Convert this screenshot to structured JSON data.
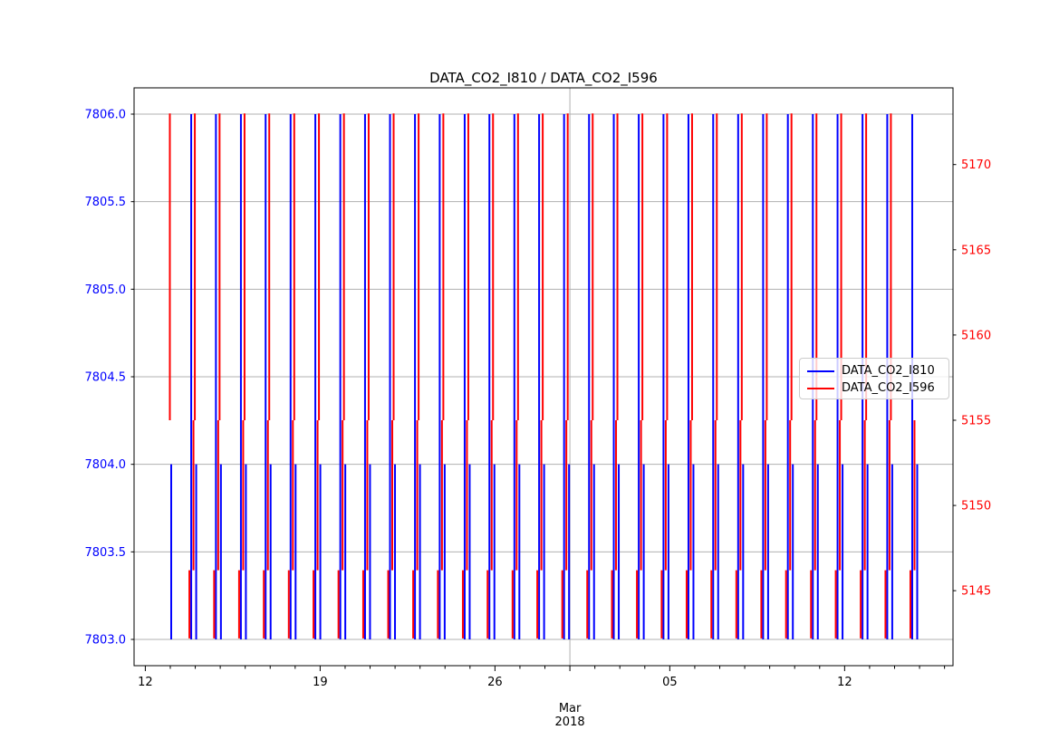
{
  "title": "DATA_CO2_I810 / DATA_CO2_I596",
  "colors": {
    "blue": "#0000ff",
    "red": "#ff0000",
    "grid": "#b0b0b0",
    "spine": "#000000",
    "text": "#000000"
  },
  "legend": {
    "entries": [
      {
        "label": "DATA_CO2_I810",
        "color": "#0000ff"
      },
      {
        "label": "DATA_CO2_I596",
        "color": "#ff0000"
      }
    ]
  },
  "chart_data": {
    "type": "line",
    "title": "DATA_CO2_I810 / DATA_CO2_I596",
    "grid": true,
    "legend_position": "center-right",
    "x_axis": {
      "unit": "days since 2018-02-12",
      "xlim_days": [
        -0.45,
        32.34
      ],
      "minor_tick_every_days": 1,
      "major_ticks": [
        {
          "day": 0,
          "label": "12"
        },
        {
          "day": 7,
          "label": "19"
        },
        {
          "day": 14,
          "label": "26"
        },
        {
          "day": 21,
          "label": "05"
        },
        {
          "day": 28,
          "label": "12"
        }
      ],
      "month_gridline_day": 17,
      "month_label_line1": "Mar",
      "month_label_line2": "2018"
    },
    "left_axis": {
      "series": "DATA_CO2_I810",
      "color": "#0000ff",
      "ylim": [
        7802.85,
        7806.15
      ],
      "ticks": [
        7806.0,
        7805.5,
        7805.0,
        7804.5,
        7804.0,
        7803.5,
        7803.0
      ],
      "tick_labels": [
        "7806.0",
        "7805.5",
        "7805.0",
        "7804.5",
        "7804.0",
        "7803.5",
        "7803.0"
      ]
    },
    "right_axis": {
      "series": "DATA_CO2_I596",
      "color": "#ff0000",
      "ylim": [
        5140.6,
        5174.5
      ],
      "ticks": [
        5170,
        5165,
        5160,
        5155,
        5150,
        5145
      ],
      "tick_labels": [
        "5170",
        "5165",
        "5160",
        "5155",
        "5150",
        "5145"
      ]
    },
    "levels": {
      "blue": {
        "peak": 7806.0,
        "high": 7804.0,
        "low": 7803.0
      },
      "red": {
        "peak": 5173.0,
        "shoulder": 5155.0,
        "mid": 5146.2,
        "low": 5142.2
      }
    },
    "segment_defs": {
      "blue_full": {
        "axis": "left",
        "from": 7806.0,
        "to": 7803.0,
        "color": "#0000ff"
      },
      "blue_short": {
        "axis": "left",
        "from": 7804.0,
        "to": 7803.0,
        "color": "#0000ff"
      },
      "red_upper": {
        "axis": "right",
        "from": 5173.0,
        "to": 5155.0,
        "color": "#ff0000"
      },
      "red_mid": {
        "axis": "right",
        "from": 5155.0,
        "to": 5146.2,
        "color": "#ff0000"
      },
      "red_stub": {
        "axis": "right",
        "from": 5146.2,
        "to": 5142.2,
        "color": "#ff0000"
      }
    },
    "groups": [
      {
        "day": 0.91,
        "segments": [
          "red_upper",
          "blue_short"
        ]
      },
      {
        "day": 1.91,
        "segments": [
          "blue_full",
          "blue_short",
          "red_upper",
          "red_mid",
          "red_stub"
        ]
      },
      {
        "day": 2.9,
        "segments": [
          "blue_full",
          "blue_short",
          "red_upper",
          "red_mid",
          "red_stub"
        ]
      },
      {
        "day": 3.9,
        "segments": [
          "blue_full",
          "blue_short",
          "red_upper",
          "red_mid",
          "red_stub"
        ]
      },
      {
        "day": 4.89,
        "segments": [
          "blue_full",
          "blue_short",
          "red_upper",
          "red_mid",
          "red_stub"
        ]
      },
      {
        "day": 5.89,
        "segments": [
          "blue_full",
          "blue_short",
          "red_upper",
          "red_mid",
          "red_stub"
        ]
      },
      {
        "day": 6.88,
        "segments": [
          "blue_full",
          "blue_short",
          "red_upper",
          "red_mid",
          "red_stub"
        ]
      },
      {
        "day": 7.88,
        "segments": [
          "blue_full",
          "blue_short",
          "red_upper",
          "red_mid",
          "red_stub"
        ]
      },
      {
        "day": 8.87,
        "segments": [
          "blue_full",
          "blue_short",
          "red_upper",
          "red_mid",
          "red_stub"
        ]
      },
      {
        "day": 9.87,
        "segments": [
          "blue_full",
          "blue_short",
          "red_upper",
          "red_mid",
          "red_stub"
        ]
      },
      {
        "day": 10.87,
        "segments": [
          "blue_full",
          "blue_short",
          "red_upper",
          "red_mid",
          "red_stub"
        ]
      },
      {
        "day": 11.86,
        "segments": [
          "blue_full",
          "blue_short",
          "red_upper",
          "red_mid",
          "red_stub"
        ]
      },
      {
        "day": 12.86,
        "segments": [
          "blue_full",
          "blue_short",
          "red_upper",
          "red_mid",
          "red_stub"
        ]
      },
      {
        "day": 13.85,
        "segments": [
          "blue_full",
          "blue_short",
          "red_upper",
          "red_mid",
          "red_stub"
        ]
      },
      {
        "day": 14.85,
        "segments": [
          "blue_full",
          "blue_short",
          "red_upper",
          "red_mid",
          "red_stub"
        ]
      },
      {
        "day": 15.84,
        "segments": [
          "blue_full",
          "blue_short",
          "red_upper",
          "red_mid",
          "red_stub"
        ]
      },
      {
        "day": 16.84,
        "segments": [
          "blue_full",
          "blue_short",
          "red_upper",
          "red_mid",
          "red_stub"
        ]
      },
      {
        "day": 17.84,
        "segments": [
          "blue_full",
          "blue_short",
          "red_upper",
          "red_mid",
          "red_stub"
        ]
      },
      {
        "day": 18.83,
        "segments": [
          "blue_full",
          "blue_short",
          "red_upper",
          "red_mid",
          "red_stub"
        ]
      },
      {
        "day": 19.83,
        "segments": [
          "blue_full",
          "blue_short",
          "red_upper",
          "red_mid",
          "red_stub"
        ]
      },
      {
        "day": 20.82,
        "segments": [
          "blue_full",
          "blue_short",
          "red_upper",
          "red_mid",
          "red_stub"
        ]
      },
      {
        "day": 21.82,
        "segments": [
          "blue_full",
          "blue_short",
          "red_upper",
          "red_mid",
          "red_stub"
        ]
      },
      {
        "day": 22.81,
        "segments": [
          "blue_full",
          "blue_short",
          "red_upper",
          "red_mid",
          "red_stub"
        ]
      },
      {
        "day": 23.81,
        "segments": [
          "blue_full",
          "blue_short",
          "red_upper",
          "red_mid",
          "red_stub"
        ]
      },
      {
        "day": 24.81,
        "segments": [
          "blue_full",
          "blue_short",
          "red_upper",
          "red_mid",
          "red_stub"
        ]
      },
      {
        "day": 25.8,
        "segments": [
          "blue_full",
          "blue_short",
          "red_upper",
          "red_mid",
          "red_stub"
        ]
      },
      {
        "day": 26.8,
        "segments": [
          "blue_full",
          "blue_short",
          "red_upper",
          "red_mid",
          "red_stub"
        ]
      },
      {
        "day": 27.79,
        "segments": [
          "blue_full",
          "blue_short",
          "red_upper",
          "red_mid",
          "red_stub"
        ]
      },
      {
        "day": 28.79,
        "segments": [
          "blue_full",
          "blue_short",
          "red_upper",
          "red_mid",
          "red_stub"
        ]
      },
      {
        "day": 29.78,
        "segments": [
          "blue_full",
          "blue_short",
          "red_upper",
          "red_mid",
          "red_stub"
        ]
      },
      {
        "day": 30.78,
        "segments": [
          "blue_full",
          "blue_short",
          "red_mid",
          "red_stub"
        ]
      }
    ]
  }
}
